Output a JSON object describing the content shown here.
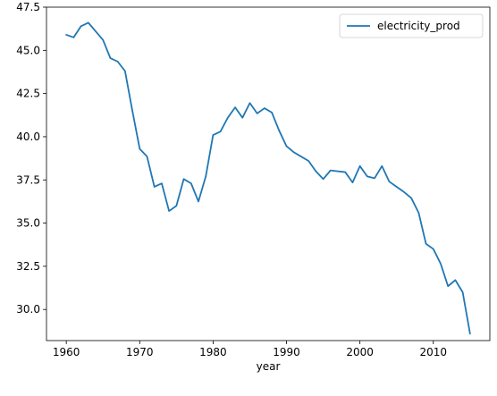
{
  "chart_data": {
    "type": "line",
    "xlabel": "year",
    "ylabel": "",
    "title": "",
    "xlim": [
      1957.3,
      2017.7
    ],
    "ylim": [
      28.2,
      47.5
    ],
    "xticks": [
      1960,
      1970,
      1980,
      1990,
      2000,
      2010
    ],
    "xtick_labels": [
      "1960",
      "1970",
      "1980",
      "1990",
      "2000",
      "2010"
    ],
    "yticks": [
      30.0,
      32.5,
      35.0,
      37.5,
      40.0,
      42.5,
      45.0,
      47.5
    ],
    "ytick_labels": [
      "30.0",
      "32.5",
      "35.0",
      "37.5",
      "40.0",
      "42.5",
      "45.0",
      "47.5"
    ],
    "grid": false,
    "legend_placement": "top-right",
    "series": [
      {
        "name": "electricity_prod",
        "color": "#1f77b4",
        "x": [
          1960,
          1961,
          1962,
          1963,
          1964,
          1965,
          1966,
          1967,
          1968,
          1969,
          1970,
          1971,
          1972,
          1973,
          1974,
          1975,
          1976,
          1977,
          1978,
          1979,
          1980,
          1981,
          1982,
          1983,
          1984,
          1985,
          1986,
          1987,
          1988,
          1989,
          1990,
          1991,
          1992,
          1993,
          1994,
          1995,
          1996,
          1997,
          1998,
          1999,
          2000,
          2001,
          2002,
          2003,
          2004,
          2005,
          2006,
          2007,
          2008,
          2009,
          2010,
          2011,
          2012,
          2013,
          2014,
          2015
        ],
        "values": [
          45.9,
          45.75,
          46.4,
          46.6,
          46.1,
          45.6,
          44.55,
          44.35,
          43.8,
          41.5,
          39.3,
          38.85,
          37.1,
          37.3,
          35.7,
          36.0,
          37.55,
          37.3,
          36.25,
          37.7,
          40.1,
          40.3,
          41.1,
          41.7,
          41.1,
          41.95,
          41.35,
          41.65,
          41.4,
          40.35,
          39.45,
          39.1,
          38.85,
          38.6,
          38.0,
          37.55,
          38.05,
          38.0,
          37.95,
          37.35,
          38.3,
          37.7,
          37.6,
          38.3,
          37.4,
          37.1,
          36.8,
          36.45,
          35.6,
          33.8,
          33.5,
          32.65,
          31.35,
          31.7,
          31.0,
          28.6
        ]
      }
    ]
  }
}
